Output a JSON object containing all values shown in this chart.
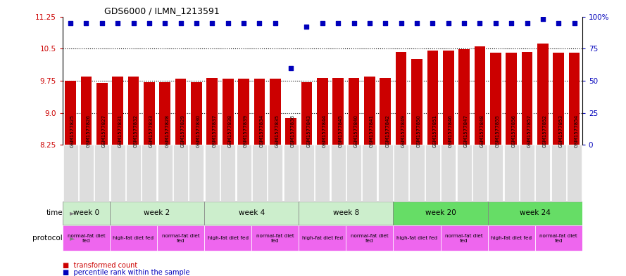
{
  "title": "GDS6000 / ILMN_1213591",
  "samples": [
    "GSM1577825",
    "GSM1577826",
    "GSM1577827",
    "GSM1577831",
    "GSM1577832",
    "GSM1577833",
    "GSM1577828",
    "GSM1577829",
    "GSM1577830",
    "GSM1577837",
    "GSM1577838",
    "GSM1577839",
    "GSM1577834",
    "GSM1577835",
    "GSM1577836",
    "GSM1577843",
    "GSM1577844",
    "GSM1577845",
    "GSM1577840",
    "GSM1577841",
    "GSM1577842",
    "GSM1577849",
    "GSM1577850",
    "GSM1577851",
    "GSM1577846",
    "GSM1577847",
    "GSM1577848",
    "GSM1577855",
    "GSM1577856",
    "GSM1577857",
    "GSM1577852",
    "GSM1577853",
    "GSM1577854"
  ],
  "red_values": [
    9.75,
    9.85,
    9.7,
    9.85,
    9.85,
    9.72,
    9.72,
    9.8,
    9.72,
    9.82,
    9.8,
    9.8,
    9.8,
    9.8,
    8.88,
    9.72,
    9.82,
    9.82,
    9.82,
    9.85,
    9.82,
    10.42,
    10.25,
    10.45,
    10.45,
    10.48,
    10.55,
    10.4,
    10.4,
    10.42,
    10.62,
    10.4,
    10.4
  ],
  "blue_percentiles": [
    95,
    95,
    95,
    95,
    95,
    95,
    95,
    95,
    95,
    95,
    95,
    95,
    95,
    95,
    60,
    92,
    95,
    95,
    95,
    95,
    95,
    95,
    95,
    95,
    95,
    95,
    95,
    95,
    95,
    95,
    98,
    95,
    95
  ],
  "yticks_left": [
    8.25,
    9.0,
    9.75,
    10.5,
    11.25
  ],
  "yticks_right": [
    0,
    25,
    50,
    75,
    100
  ],
  "ymin": 8.25,
  "ymax": 11.25,
  "bar_color": "#cc0000",
  "dot_color": "#0000bb",
  "time_groups": [
    {
      "label": "week 0",
      "start": 0,
      "end": 3,
      "color": "#cceecc"
    },
    {
      "label": "week 2",
      "start": 3,
      "end": 9,
      "color": "#cceecc"
    },
    {
      "label": "week 4",
      "start": 9,
      "end": 15,
      "color": "#cceecc"
    },
    {
      "label": "week 8",
      "start": 15,
      "end": 21,
      "color": "#cceecc"
    },
    {
      "label": "week 20",
      "start": 21,
      "end": 27,
      "color": "#66dd66"
    },
    {
      "label": "week 24",
      "start": 27,
      "end": 33,
      "color": "#66dd66"
    }
  ],
  "protocol_groups": [
    {
      "label": "normal-fat diet\nfed",
      "start": 0,
      "end": 3
    },
    {
      "label": "high-fat diet fed",
      "start": 3,
      "end": 6
    },
    {
      "label": "normal-fat diet\nfed",
      "start": 6,
      "end": 9
    },
    {
      "label": "high-fat diet fed",
      "start": 9,
      "end": 12
    },
    {
      "label": "normal-fat diet\nfed",
      "start": 12,
      "end": 15
    },
    {
      "label": "high-fat diet fed",
      "start": 15,
      "end": 18
    },
    {
      "label": "normal-fat diet\nfed",
      "start": 18,
      "end": 21
    },
    {
      "label": "high-fat diet fed",
      "start": 21,
      "end": 24
    },
    {
      "label": "normal-fat diet\nfed",
      "start": 24,
      "end": 27
    },
    {
      "label": "high-fat diet fed",
      "start": 27,
      "end": 30
    },
    {
      "label": "normal-fat diet\nfed",
      "start": 30,
      "end": 33
    }
  ],
  "protocol_color": "#ee66ee",
  "xtick_bg": "#dddddd"
}
